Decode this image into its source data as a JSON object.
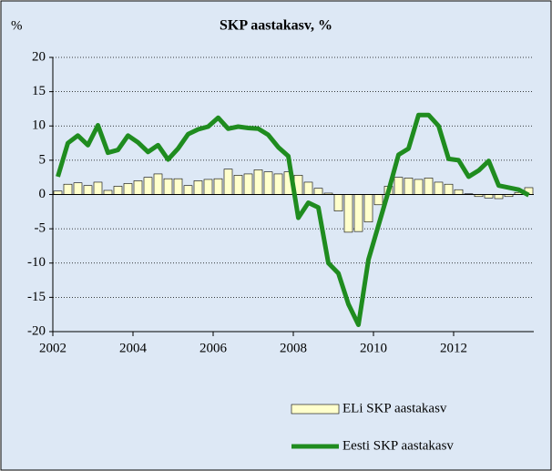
{
  "chart_data": {
    "type": "bar+line",
    "title": "SKP aastakasv, %",
    "y_label": "%",
    "x": [
      2002,
      2002.25,
      2002.5,
      2002.75,
      2003,
      2003.25,
      2003.5,
      2003.75,
      2004,
      2004.25,
      2004.5,
      2004.75,
      2005,
      2005.25,
      2005.5,
      2005.75,
      2006,
      2006.25,
      2006.5,
      2006.75,
      2007,
      2007.25,
      2007.5,
      2007.75,
      2008,
      2008.25,
      2008.5,
      2008.75,
      2009,
      2009.25,
      2009.5,
      2009.75,
      2010,
      2010.25,
      2010.5,
      2010.75,
      2011,
      2011.25,
      2011.5,
      2011.75,
      2012,
      2012.25,
      2012.5,
      2012.75,
      2013,
      2013.25,
      2013.5,
      2013.75
    ],
    "series": [
      {
        "name": "ELi SKP aastakasv",
        "kind": "bar",
        "color": "#ffffcc",
        "values": [
          0.5,
          1.5,
          1.7,
          1.3,
          1.8,
          0.6,
          1.2,
          1.6,
          2.0,
          2.5,
          3.0,
          2.3,
          2.3,
          1.3,
          2.0,
          2.2,
          2.3,
          3.7,
          2.8,
          3.0,
          3.6,
          3.3,
          3.0,
          3.3,
          2.8,
          1.8,
          0.9,
          0.2,
          -2.4,
          -5.5,
          -5.4,
          -4.0,
          -1.5,
          1.2,
          2.5,
          2.4,
          2.2,
          2.4,
          1.8,
          1.5,
          0.7,
          0.1,
          -0.3,
          -0.5,
          -0.6,
          -0.3,
          0.3,
          1.0
        ]
      },
      {
        "name": "Eesti SKP aastakasv",
        "kind": "line",
        "color": "#1f8c1f",
        "values": [
          2.6,
          7.5,
          8.6,
          7.2,
          10.1,
          6.1,
          6.5,
          8.6,
          7.6,
          6.2,
          7.2,
          5.1,
          6.7,
          8.8,
          9.5,
          9.9,
          11.2,
          9.6,
          9.9,
          9.7,
          9.6,
          8.7,
          6.9,
          5.6,
          -3.4,
          -1.2,
          -1.9,
          -10.0,
          -11.5,
          -16.0,
          -19.0,
          -9.5,
          -4.5,
          0.5,
          5.8,
          6.7,
          11.6,
          11.6,
          10.0,
          5.2,
          5.0,
          2.6,
          3.5,
          4.9,
          1.3,
          1.0,
          0.7,
          -0.1
        ]
      }
    ],
    "xlim": [
      2002,
      2014
    ],
    "xticks": [
      2002,
      2004,
      2006,
      2008,
      2010,
      2012
    ],
    "ylim": [
      -20,
      20
    ],
    "yticks": [
      -20,
      -15,
      -10,
      -5,
      0,
      5,
      10,
      15,
      20
    ],
    "grid": true,
    "legend": "bottom"
  }
}
